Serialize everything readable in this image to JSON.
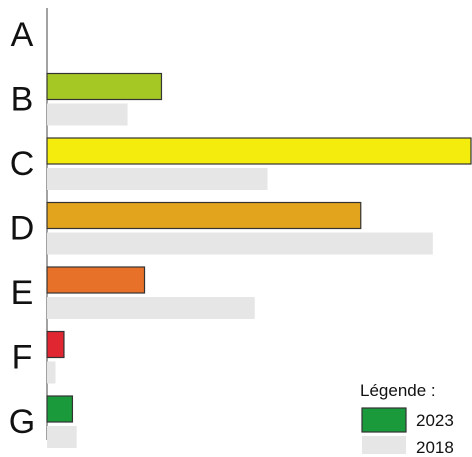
{
  "chart_data": {
    "type": "bar",
    "orientation": "horizontal",
    "categories": [
      "A",
      "B",
      "C",
      "D",
      "E",
      "F",
      "G"
    ],
    "series": [
      {
        "name": "2023",
        "values": [
          0,
          27,
          100,
          74,
          23,
          4,
          6
        ],
        "colors": [
          "#1a9a3a",
          "#43a843",
          "#a6c824",
          "#f4ec0c",
          "#e2a31d",
          "#e8712a",
          "#e02630"
        ],
        "outline": "#333333"
      },
      {
        "name": "2018",
        "values": [
          0,
          19,
          52,
          91,
          49,
          2,
          7
        ],
        "color": "#e6e6e6"
      }
    ],
    "xlim": [
      0,
      100
    ],
    "grid": false,
    "axis_line": "left",
    "legend": {
      "title": "Légende :",
      "position": "bottom-right"
    }
  }
}
